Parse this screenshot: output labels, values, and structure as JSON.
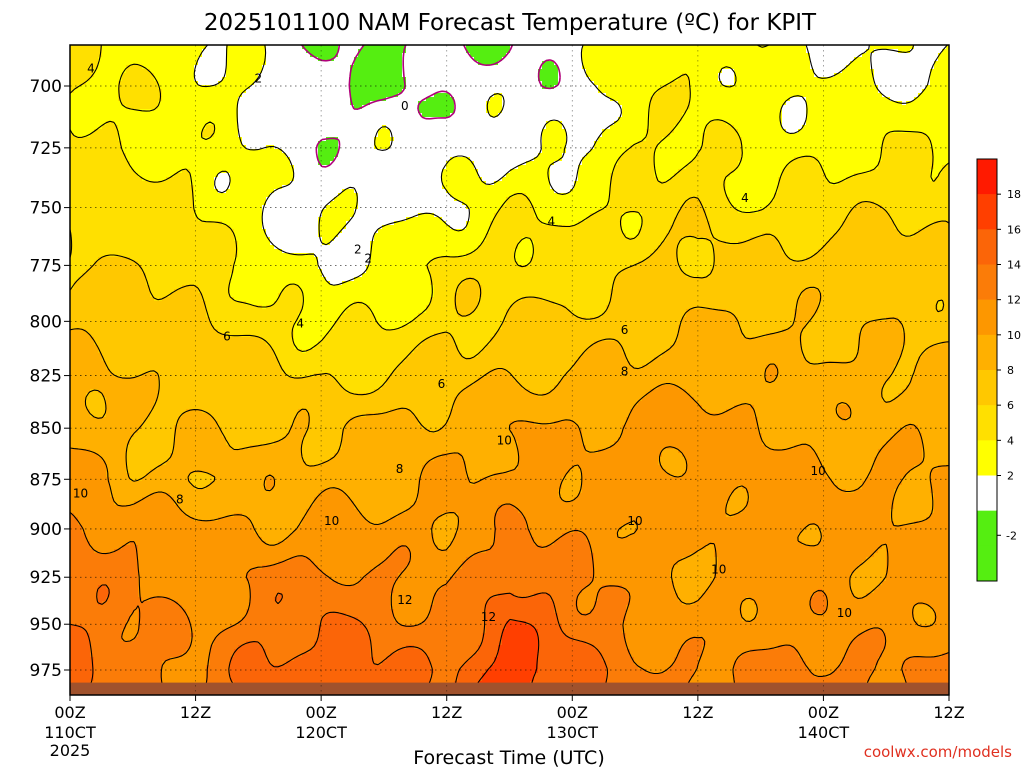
{
  "chart_data": {
    "type": "heatmap",
    "title": "2025101100 NAM Forecast Temperature (ºC) for KPIT",
    "xlabel": "Forecast Time (UTC)",
    "ylabel": "",
    "x_ticks": [
      {
        "hour": 0,
        "label": "00Z",
        "date": "110CT",
        "year": "2025"
      },
      {
        "hour": 12,
        "label": "12Z"
      },
      {
        "hour": 24,
        "label": "00Z",
        "date": "120CT"
      },
      {
        "hour": 36,
        "label": "12Z"
      },
      {
        "hour": 48,
        "label": "00Z",
        "date": "130CT"
      },
      {
        "hour": 60,
        "label": "12Z"
      },
      {
        "hour": 72,
        "label": "00Z",
        "date": "140CT"
      },
      {
        "hour": 84,
        "label": "12Z"
      }
    ],
    "xlim": [
      0,
      84
    ],
    "y_ticks": [
      700,
      725,
      750,
      775,
      800,
      825,
      850,
      875,
      900,
      925,
      950,
      975
    ],
    "ylim": [
      1000,
      680
    ],
    "y_scale": "log",
    "grid": true,
    "colorbar": {
      "placement": "right",
      "ticks": [
        "18",
        "16",
        "14",
        "12",
        "10",
        "8",
        "6",
        "4",
        "2",
        "-2"
      ],
      "bands": [
        {
          "from": -4,
          "to": -2,
          "color": "#55ee11"
        },
        {
          "from": -2,
          "to": 0,
          "color": "#55ee11"
        },
        {
          "from": 0,
          "to": 2,
          "color": "#ffffff"
        },
        {
          "from": 2,
          "to": 4,
          "color": "#ffff00"
        },
        {
          "from": 4,
          "to": 6,
          "color": "#ffe000"
        },
        {
          "from": 6,
          "to": 8,
          "color": "#ffc800"
        },
        {
          "from": 8,
          "to": 10,
          "color": "#ffb000"
        },
        {
          "from": 10,
          "to": 12,
          "color": "#fd9700"
        },
        {
          "from": 12,
          "to": 14,
          "color": "#fb7c08"
        },
        {
          "from": 14,
          "to": 16,
          "color": "#fb6508"
        },
        {
          "from": 16,
          "to": 18,
          "color": "#ff3f00"
        },
        {
          "from": 18,
          "to": 20,
          "color": "#ff1a00"
        }
      ]
    },
    "ground_color": "#a0522d",
    "freezing_line_color": "#b0007a",
    "temperature_field": {
      "hours": [
        0,
        6,
        12,
        18,
        24,
        30,
        36,
        42,
        48,
        54,
        60,
        66,
        72,
        78,
        84
      ],
      "levels": [
        975,
        950,
        925,
        900,
        875,
        850,
        825,
        800,
        775,
        750,
        725,
        700,
        680
      ],
      "values": [
        [
          14.8,
          12.8,
          12.0,
          14.4,
          15.2,
          14.8,
          13.4,
          17.8,
          15.2,
          12.6,
          12.0,
          12.2,
          12.6,
          12.2,
          12.2
        ],
        [
          14.2,
          12.6,
          11.4,
          13.2,
          14.0,
          13.0,
          12.0,
          15.8,
          13.8,
          11.4,
          10.6,
          11.2,
          11.6,
          10.8,
          10.8
        ],
        [
          13.6,
          12.2,
          11.0,
          12.6,
          12.8,
          12.0,
          11.2,
          14.0,
          12.6,
          11.0,
          10.0,
          10.6,
          10.8,
          10.4,
          10.4
        ],
        [
          12.6,
          11.4,
          10.6,
          10.2,
          10.2,
          10.4,
          10.6,
          11.8,
          11.4,
          10.6,
          10.4,
          10.8,
          10.6,
          10.4,
          10.4
        ],
        [
          10.6,
          8.4,
          8.4,
          8.8,
          9.2,
          9.6,
          10.0,
          10.6,
          10.6,
          10.4,
          10.8,
          11.2,
          10.2,
          10.4,
          10.0
        ],
        [
          9.6,
          8.0,
          7.8,
          7.6,
          7.8,
          8.6,
          9.0,
          10.2,
          9.6,
          10.6,
          11.0,
          10.2,
          9.4,
          9.2,
          9.4
        ],
        [
          8.6,
          7.6,
          7.4,
          6.8,
          5.4,
          6.0,
          7.2,
          8.0,
          8.4,
          8.8,
          9.4,
          9.0,
          8.8,
          8.6,
          8.6
        ],
        [
          7.6,
          7.0,
          6.4,
          5.0,
          3.8,
          3.6,
          5.6,
          6.2,
          6.6,
          7.4,
          8.0,
          8.0,
          7.6,
          7.4,
          7.4
        ],
        [
          6.0,
          5.8,
          5.4,
          2.6,
          1.8,
          2.6,
          4.6,
          5.0,
          5.2,
          6.0,
          6.6,
          6.4,
          6.8,
          7.2,
          6.4
        ],
        [
          5.4,
          4.6,
          4.0,
          2.2,
          1.4,
          1.4,
          1.8,
          3.6,
          3.4,
          4.4,
          5.4,
          4.2,
          5.0,
          5.6,
          5.6
        ],
        [
          4.6,
          3.6,
          3.4,
          1.8,
          0.6,
          1.4,
          1.0,
          1.8,
          1.2,
          4.0,
          4.4,
          2.8,
          3.4,
          4.0,
          3.6
        ],
        [
          4.2,
          3.8,
          2.8,
          1.8,
          0.4,
          -0.4,
          0.4,
          1.0,
          0.8,
          3.2,
          3.6,
          2.2,
          2.4,
          2.2,
          2.0
        ],
        [
          4.0,
          3.6,
          2.6,
          1.4,
          0.2,
          -0.6,
          0.2,
          -0.4,
          1.6,
          3.0,
          3.4,
          1.8,
          1.6,
          1.6,
          1.8
        ]
      ]
    },
    "ground_level": 982,
    "contour_labels": [
      {
        "text": "4",
        "hour": 2.0,
        "level": 693
      },
      {
        "text": "2",
        "hour": 18.0,
        "level": 697
      },
      {
        "text": "0",
        "hour": 32.0,
        "level": 708
      },
      {
        "text": "2",
        "hour": 27.5,
        "level": 768
      },
      {
        "text": "2",
        "hour": 28.5,
        "level": 772
      },
      {
        "text": "4",
        "hour": 46.0,
        "level": 756
      },
      {
        "text": "4",
        "hour": 64.5,
        "level": 746
      },
      {
        "text": "6",
        "hour": 15.0,
        "level": 807
      },
      {
        "text": "4",
        "hour": 22.0,
        "level": 801
      },
      {
        "text": "6",
        "hour": 35.5,
        "level": 829
      },
      {
        "text": "6",
        "hour": 53.0,
        "level": 804
      },
      {
        "text": "8",
        "hour": 53.0,
        "level": 823
      },
      {
        "text": "10",
        "hour": 41.5,
        "level": 856
      },
      {
        "text": "8",
        "hour": 31.5,
        "level": 870
      },
      {
        "text": "10",
        "hour": 1.0,
        "level": 882
      },
      {
        "text": "8",
        "hour": 10.5,
        "level": 885
      },
      {
        "text": "10",
        "hour": 25.0,
        "level": 896
      },
      {
        "text": "10",
        "hour": 54.0,
        "level": 896
      },
      {
        "text": "10",
        "hour": 71.5,
        "level": 871
      },
      {
        "text": "10",
        "hour": 62.0,
        "level": 921
      },
      {
        "text": "10",
        "hour": 74.0,
        "level": 944
      },
      {
        "text": "12",
        "hour": 32.0,
        "level": 937
      },
      {
        "text": "12",
        "hour": 40.0,
        "level": 946
      }
    ],
    "watermark": "coolwx.com/models"
  }
}
